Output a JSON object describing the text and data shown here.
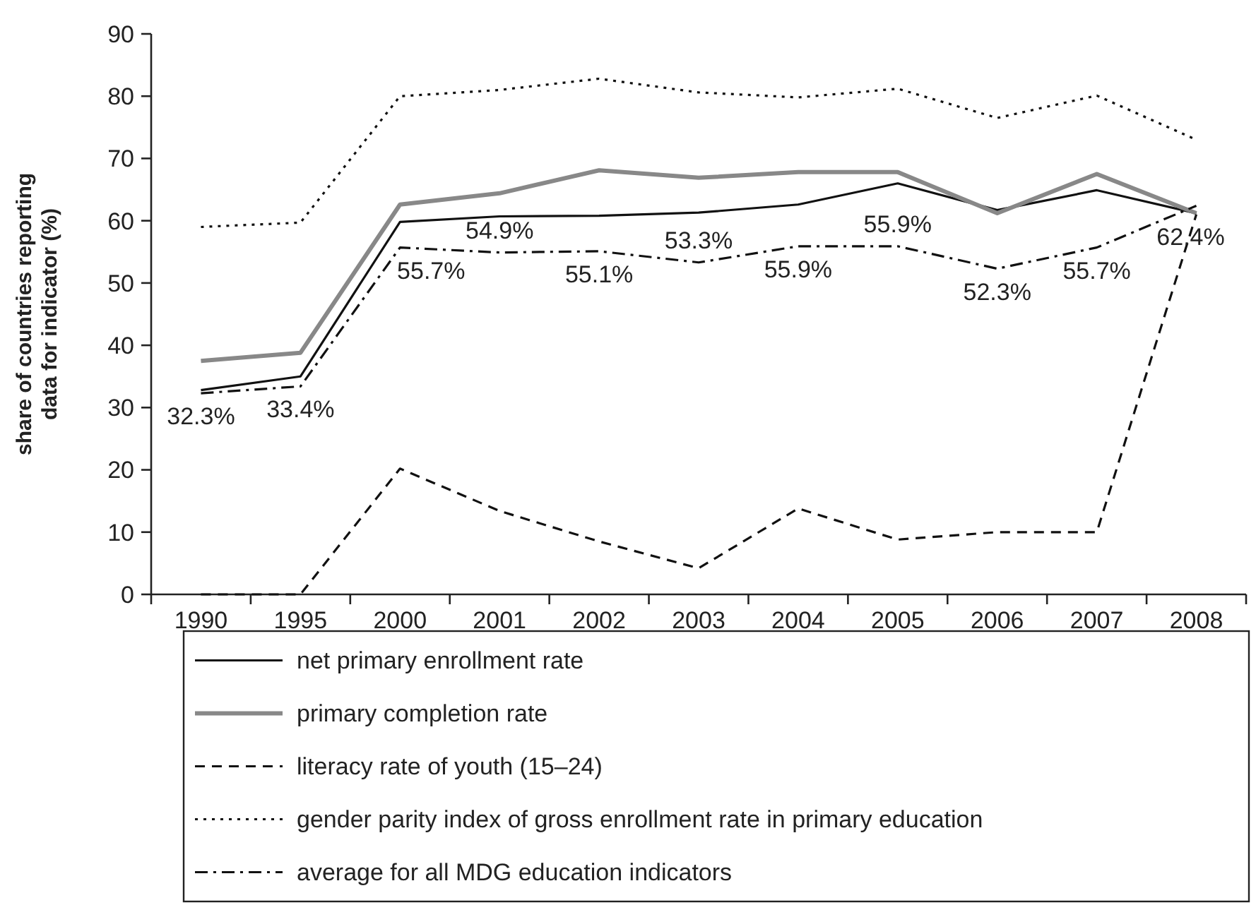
{
  "chart_data": {
    "type": "line",
    "ylabel": "share of countries reporting data for indicator (%)",
    "categories": [
      "1990",
      "1995",
      "2000",
      "2001",
      "2002",
      "2003",
      "2004",
      "2005",
      "2006",
      "2007",
      "2008"
    ],
    "ylim": [
      0,
      90
    ],
    "yticks": [
      0,
      10,
      20,
      30,
      40,
      50,
      60,
      70,
      80,
      90
    ],
    "grid": false,
    "legend": "bottom",
    "marker": "none",
    "series": [
      {
        "name": "net primary enrollment rate",
        "color": "#111111",
        "line_style": "solid",
        "values": [
          32.8,
          35,
          59.8,
          60.7,
          60.8,
          61.3,
          62.6,
          66,
          61.7,
          64.9,
          61.2
        ]
      },
      {
        "name": "primary completion rate",
        "color": "#888888",
        "line_style": "solid",
        "values": [
          37.5,
          38.8,
          62.6,
          64.4,
          68.1,
          66.9,
          67.8,
          67.8,
          61.2,
          67.5,
          61.2
        ]
      },
      {
        "name": "literacy rate of youth (15–24)",
        "color": "#111111",
        "line_style": "dashed",
        "values": [
          0,
          0,
          20.2,
          13.4,
          8.5,
          4.2,
          13.8,
          8.8,
          10,
          10,
          61
        ]
      },
      {
        "name": "gender parity index of gross enrollment rate in primary education",
        "color": "#111111",
        "line_style": "dotted",
        "values": [
          59,
          59.7,
          80,
          81,
          82.8,
          80.6,
          79.8,
          81.2,
          76.5,
          80.1,
          73
        ]
      },
      {
        "name": "average for all MDG education indicators",
        "color": "#111111",
        "line_style": "dashdot",
        "values": [
          32.3,
          33.4,
          55.7,
          54.9,
          55.1,
          53.3,
          55.9,
          55.9,
          52.3,
          55.7,
          62.4
        ],
        "value_labels": [
          "32.3%",
          "33.4%",
          "55.7%",
          "54.9%",
          "55.1%",
          "53.3%",
          "55.9%",
          "55.9%",
          "52.3%",
          "55.7%",
          "62.4%"
        ]
      }
    ]
  }
}
